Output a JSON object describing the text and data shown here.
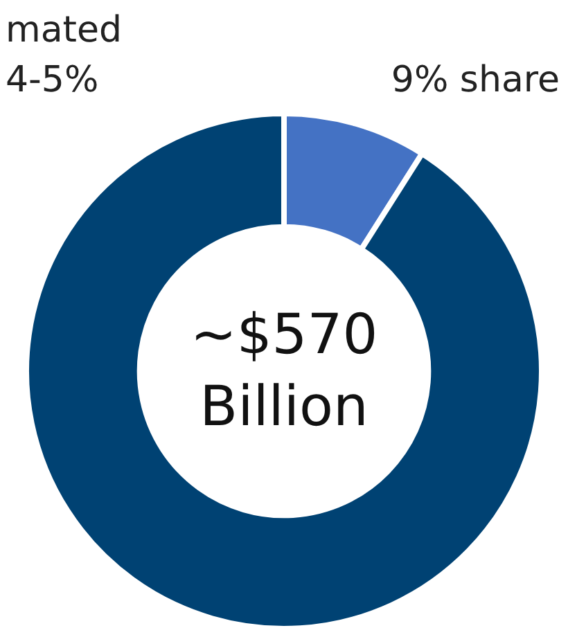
{
  "chart_data": {
    "type": "donut",
    "categories": [
      null,
      null
    ],
    "values": [
      9,
      91
    ],
    "colors": [
      "#4472c4",
      "#004273"
    ],
    "annotations": [
      "mated",
      "4-5%",
      "9% share",
      "~$570",
      "Billion"
    ]
  }
}
